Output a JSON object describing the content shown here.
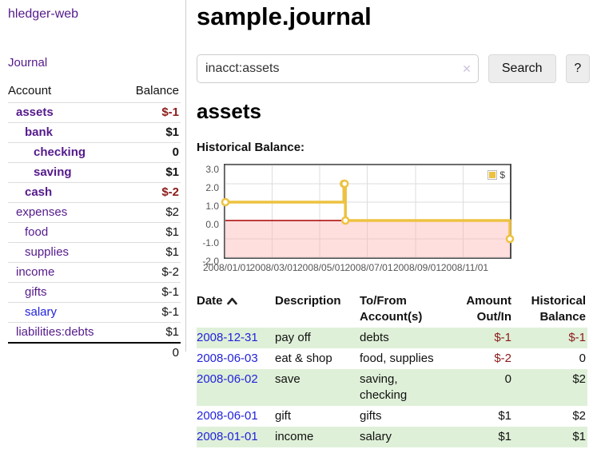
{
  "colors": {
    "purple": "#551a8b",
    "blue": "#2222dd",
    "neg-strong": "#8c1a1a",
    "neg-soft": "#c26060",
    "row-green": "#dff0d8",
    "gold": "#edc240",
    "pink": "#ffb0b0",
    "zero-red": "#aa0000"
  },
  "app": {
    "title": "hledger-web"
  },
  "sidebar": {
    "journal_link": "Journal",
    "accounts": {
      "header_account": "Account",
      "header_balance": "Balance",
      "rows": [
        {
          "name": "assets",
          "level": 1,
          "matched": true,
          "balance": "$-1",
          "negative": true,
          "unvisited": false
        },
        {
          "name": "bank",
          "level": 2,
          "matched": true,
          "balance": "$1",
          "negative": false,
          "unvisited": false
        },
        {
          "name": "checking",
          "level": 3,
          "matched": true,
          "balance": "0",
          "negative": false,
          "unvisited": false
        },
        {
          "name": "saving",
          "level": 3,
          "matched": true,
          "balance": "$1",
          "negative": false,
          "unvisited": false
        },
        {
          "name": "cash",
          "level": 2,
          "matched": true,
          "balance": "$-2",
          "negative": true,
          "unvisited": false
        },
        {
          "name": "expenses",
          "level": 1,
          "matched": false,
          "balance": "$2",
          "negative": false,
          "unvisited": false
        },
        {
          "name": "food",
          "level": 2,
          "matched": false,
          "balance": "$1",
          "negative": false,
          "unvisited": false
        },
        {
          "name": "supplies",
          "level": 2,
          "matched": false,
          "balance": "$1",
          "negative": false,
          "unvisited": false
        },
        {
          "name": "income",
          "level": 1,
          "matched": false,
          "balance": "$-2",
          "negative": true,
          "unvisited": false
        },
        {
          "name": "gifts",
          "level": 2,
          "matched": false,
          "balance": "$-1",
          "negative": true,
          "unvisited": false
        },
        {
          "name": "salary",
          "level": 2,
          "matched": false,
          "balance": "$-1",
          "negative": true,
          "unvisited": true
        },
        {
          "name": "liabilities:debts",
          "level": 1,
          "matched": false,
          "balance": "$1",
          "negative": false,
          "unvisited": false
        }
      ],
      "total": "0"
    }
  },
  "main": {
    "title": "sample.journal",
    "search": {
      "value": "inacct:assets",
      "clear_icon": "✕",
      "button_label": "Search",
      "help_label": "?"
    },
    "account_heading": "assets",
    "register": {
      "headers": [
        {
          "lines": [
            "Date"
          ],
          "align": "left",
          "sort": "asc"
        },
        {
          "lines": [
            "Description"
          ],
          "align": "left"
        },
        {
          "lines": [
            "To/From",
            "Account(s)"
          ],
          "align": "left"
        },
        {
          "lines": [
            "Amount",
            "Out/In"
          ],
          "align": "right"
        },
        {
          "lines": [
            "Historical",
            "Balance"
          ],
          "align": "right"
        }
      ],
      "rows": [
        {
          "date": "2008-12-31",
          "description": "pay off",
          "accounts": "debts",
          "amount": "$-1",
          "amount_negative": true,
          "balance": "$-1",
          "balance_negative": true
        },
        {
          "date": "2008-06-03",
          "description": "eat & shop",
          "accounts": "food, supplies",
          "amount": "$-2",
          "amount_negative": true,
          "balance": "0",
          "balance_negative": false
        },
        {
          "date": "2008-06-02",
          "description": "save",
          "accounts": "saving, checking",
          "amount": "0",
          "amount_negative": false,
          "balance": "$2",
          "balance_negative": false
        },
        {
          "date": "2008-06-01",
          "description": "gift",
          "accounts": "gifts",
          "amount": "$1",
          "amount_negative": false,
          "balance": "$2",
          "balance_negative": false
        },
        {
          "date": "2008-01-01",
          "description": "income",
          "accounts": "salary",
          "amount": "$1",
          "amount_negative": false,
          "balance": "$1",
          "balance_negative": false
        }
      ]
    }
  },
  "chart_data": {
    "type": "line",
    "title": "Historical Balance:",
    "step": true,
    "x_range": [
      "2008-01-01",
      "2008-12-31"
    ],
    "ylim": [
      -2.0,
      3.0
    ],
    "series": [
      {
        "name": "$",
        "points": [
          {
            "x": "2008-01-01",
            "y": 1
          },
          {
            "x": "2008-06-01",
            "y": 2
          },
          {
            "x": "2008-06-02",
            "y": 2
          },
          {
            "x": "2008-06-03",
            "y": 0
          },
          {
            "x": "2008-12-31",
            "y": -1
          }
        ]
      }
    ],
    "xticks": [
      "2008/01/01",
      "2008/03/01",
      "2008/05/01",
      "2008/07/01",
      "2008/09/01",
      "2008/11/01"
    ],
    "ytick_labels": [
      "3.0",
      "2.0",
      "1.0",
      "0.0",
      "-1.0",
      "-2.0"
    ],
    "legend": {
      "label": "$",
      "position": "top-right"
    },
    "grid": true,
    "negative_region": true,
    "zero_line": true
  }
}
